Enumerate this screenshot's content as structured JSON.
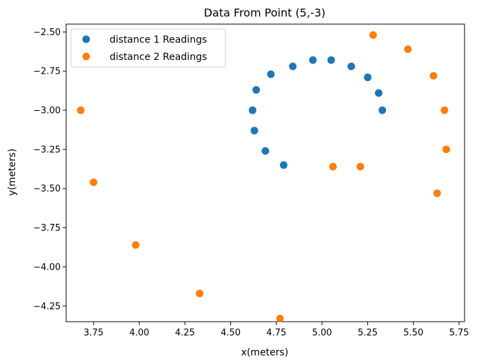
{
  "chart_data": {
    "type": "scatter",
    "title": "Data From Point (5,-3)",
    "xlabel": "x(meters)",
    "ylabel": "y(meters)",
    "xlim": [
      3.6,
      5.78
    ],
    "ylim": [
      -4.35,
      -2.45
    ],
    "xticks": [
      3.75,
      4.0,
      4.25,
      4.5,
      4.75,
      5.0,
      5.25,
      5.5,
      5.75
    ],
    "yticks": [
      -2.5,
      -2.75,
      -3.0,
      -3.25,
      -3.5,
      -3.75,
      -4.0,
      -4.25
    ],
    "xtick_labels": [
      "3.75",
      "4.00",
      "4.25",
      "4.50",
      "4.75",
      "5.00",
      "5.25",
      "5.50",
      "5.75"
    ],
    "ytick_labels": [
      "−2.50",
      "−2.75",
      "−3.00",
      "−3.25",
      "−3.50",
      "−3.75",
      "−4.00",
      "−4.25"
    ],
    "grid": false,
    "legend_position": "top-left",
    "series": [
      {
        "name": "distance 1 Readings",
        "color": "#1f77b4",
        "points": [
          [
            5.33,
            -3.0
          ],
          [
            5.31,
            -2.89
          ],
          [
            5.25,
            -2.79
          ],
          [
            5.16,
            -2.72
          ],
          [
            5.05,
            -2.68
          ],
          [
            4.95,
            -2.68
          ],
          [
            4.84,
            -2.72
          ],
          [
            4.72,
            -2.77
          ],
          [
            4.64,
            -2.87
          ],
          [
            4.62,
            -3.0
          ],
          [
            4.63,
            -3.13
          ],
          [
            4.69,
            -3.26
          ],
          [
            4.79,
            -3.35
          ]
        ]
      },
      {
        "name": "distance 2 Readings",
        "color": "#ff7f0e",
        "points": [
          [
            5.67,
            -3.0
          ],
          [
            5.61,
            -2.78
          ],
          [
            5.47,
            -2.61
          ],
          [
            5.28,
            -2.52
          ],
          [
            5.68,
            -3.25
          ],
          [
            5.63,
            -3.53
          ],
          [
            5.21,
            -3.36
          ],
          [
            5.06,
            -3.36
          ],
          [
            4.77,
            -4.33
          ],
          [
            4.33,
            -4.17
          ],
          [
            3.98,
            -3.86
          ],
          [
            3.75,
            -3.46
          ],
          [
            3.68,
            -3.0
          ]
        ]
      }
    ]
  }
}
